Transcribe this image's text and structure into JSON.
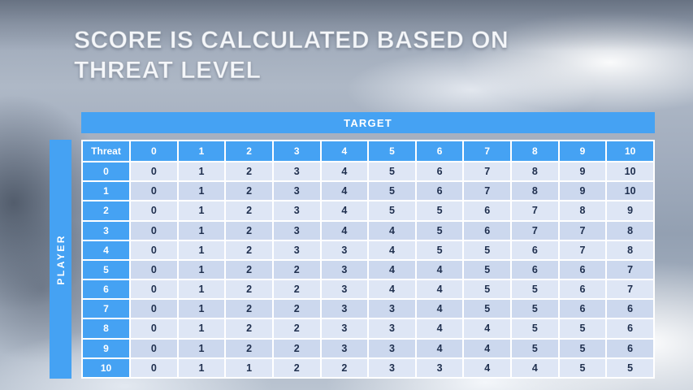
{
  "title": {
    "line1": "SCORE IS CALCULATED BASED ON",
    "line2": "THREAT LEVEL"
  },
  "matrix": {
    "target_label": "TARGET",
    "player_label": "PLAYER",
    "corner_label": "Threat",
    "column_headers": [
      "0",
      "1",
      "2",
      "3",
      "4",
      "5",
      "6",
      "7",
      "8",
      "9",
      "10"
    ],
    "row_headers": [
      "0",
      "1",
      "2",
      "3",
      "4",
      "5",
      "6",
      "7",
      "8",
      "9",
      "10"
    ]
  },
  "chart_data": {
    "type": "table",
    "title": "Score is calculated based on threat level",
    "column_axis_label": "TARGET",
    "row_axis_label": "PLAYER",
    "corner_label": "Threat",
    "columns": [
      0,
      1,
      2,
      3,
      4,
      5,
      6,
      7,
      8,
      9,
      10
    ],
    "row_labels": [
      0,
      1,
      2,
      3,
      4,
      5,
      6,
      7,
      8,
      9,
      10
    ],
    "rows": [
      [
        0,
        1,
        2,
        3,
        4,
        5,
        6,
        7,
        8,
        9,
        10
      ],
      [
        0,
        1,
        2,
        3,
        4,
        5,
        6,
        7,
        8,
        9,
        10
      ],
      [
        0,
        1,
        2,
        3,
        4,
        5,
        5,
        6,
        7,
        8,
        9
      ],
      [
        0,
        1,
        2,
        3,
        4,
        4,
        5,
        6,
        7,
        7,
        8
      ],
      [
        0,
        1,
        2,
        3,
        3,
        4,
        5,
        5,
        6,
        7,
        8
      ],
      [
        0,
        1,
        2,
        2,
        3,
        4,
        4,
        5,
        6,
        6,
        7
      ],
      [
        0,
        1,
        2,
        2,
        3,
        4,
        4,
        5,
        5,
        6,
        7
      ],
      [
        0,
        1,
        2,
        2,
        3,
        3,
        4,
        5,
        5,
        6,
        6
      ],
      [
        0,
        1,
        2,
        2,
        3,
        3,
        4,
        4,
        5,
        5,
        6
      ],
      [
        0,
        1,
        2,
        2,
        3,
        3,
        4,
        4,
        5,
        5,
        6
      ],
      [
        0,
        1,
        1,
        2,
        2,
        3,
        3,
        4,
        4,
        5,
        5
      ]
    ]
  },
  "colors": {
    "accent_blue": "#45a2f3",
    "band_light": "#dee6f5",
    "band_dark": "#ccd8ee",
    "value_text": "#20304f"
  }
}
